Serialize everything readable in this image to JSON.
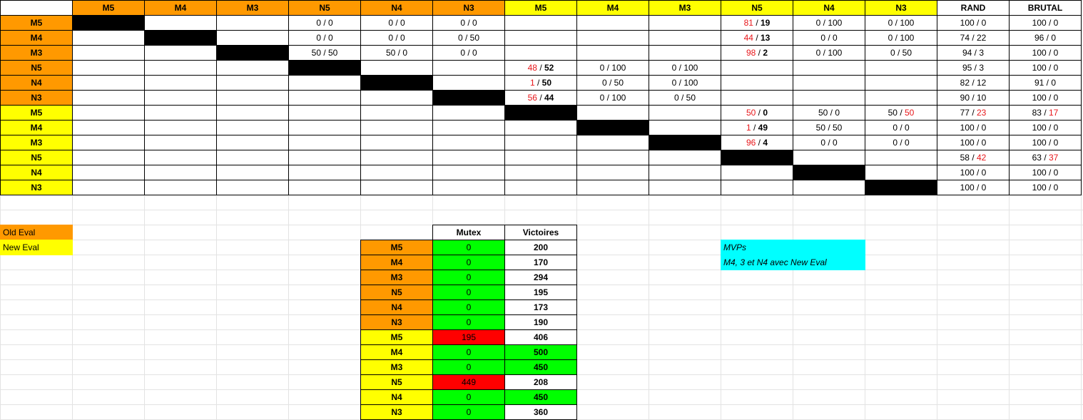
{
  "colors": {
    "orange": "#ff9900",
    "yellow": "#ffff00",
    "black": "#000000",
    "green": "#00ff00",
    "red_fill": "#ff0000",
    "cyan": "#00ffff",
    "red_text": "#e8171b"
  },
  "matrix": {
    "header": [
      {
        "label": "",
        "fill": "white"
      },
      {
        "label": "M5",
        "fill": "orange"
      },
      {
        "label": "M4",
        "fill": "orange"
      },
      {
        "label": "M3",
        "fill": "orange"
      },
      {
        "label": "N5",
        "fill": "orange"
      },
      {
        "label": "N4",
        "fill": "orange"
      },
      {
        "label": "N3",
        "fill": "orange"
      },
      {
        "label": "M5",
        "fill": "yellow"
      },
      {
        "label": "M4",
        "fill": "yellow"
      },
      {
        "label": "M3",
        "fill": "yellow"
      },
      {
        "label": "N5",
        "fill": "yellow"
      },
      {
        "label": "N4",
        "fill": "yellow"
      },
      {
        "label": "N3",
        "fill": "yellow"
      },
      {
        "label": "RAND",
        "fill": "white"
      },
      {
        "label": "BRUTAL",
        "fill": "white"
      }
    ],
    "rows": [
      {
        "label": "M5",
        "fill": "orange",
        "cells": [
          {
            "v": "",
            "black": true
          },
          {
            "v": ""
          },
          {
            "v": ""
          },
          {
            "v": "0 / 0"
          },
          {
            "v": "0 / 0"
          },
          {
            "v": "0 / 0"
          },
          {
            "v": ""
          },
          {
            "v": ""
          },
          {
            "v": ""
          },
          {
            "a": "81",
            "b": "19",
            "ar": true
          },
          {
            "v": "0 / 100"
          },
          {
            "v": "0 / 100"
          },
          {
            "v": "100 / 0"
          },
          {
            "v": "100 / 0"
          }
        ]
      },
      {
        "label": "M4",
        "fill": "orange",
        "cells": [
          {
            "v": ""
          },
          {
            "v": "",
            "black": true
          },
          {
            "v": ""
          },
          {
            "v": "0 / 0"
          },
          {
            "v": "0 / 0"
          },
          {
            "v": "0 / 50"
          },
          {
            "v": ""
          },
          {
            "v": ""
          },
          {
            "v": ""
          },
          {
            "a": "44",
            "b": "13",
            "ar": true
          },
          {
            "v": "0 / 0"
          },
          {
            "v": "0 / 100"
          },
          {
            "v": "74 / 22"
          },
          {
            "v": "96 / 0"
          }
        ]
      },
      {
        "label": "M3",
        "fill": "orange",
        "cells": [
          {
            "v": ""
          },
          {
            "v": ""
          },
          {
            "v": "",
            "black": true
          },
          {
            "v": "50 / 50"
          },
          {
            "v": "50 / 0"
          },
          {
            "v": "0 / 0"
          },
          {
            "v": ""
          },
          {
            "v": ""
          },
          {
            "v": ""
          },
          {
            "a": "98",
            "b": "2",
            "ar": true
          },
          {
            "v": "0 / 100"
          },
          {
            "v": "0 / 50"
          },
          {
            "v": "94 / 3"
          },
          {
            "v": "100 / 0"
          }
        ]
      },
      {
        "label": "N5",
        "fill": "orange",
        "cells": [
          {
            "v": ""
          },
          {
            "v": ""
          },
          {
            "v": ""
          },
          {
            "v": "",
            "black": true
          },
          {
            "v": ""
          },
          {
            "v": ""
          },
          {
            "a": "48",
            "b": "52",
            "ar": true
          },
          {
            "v": "0 / 100"
          },
          {
            "v": "0 / 100"
          },
          {
            "v": ""
          },
          {
            "v": ""
          },
          {
            "v": ""
          },
          {
            "v": "95 / 3"
          },
          {
            "v": "100 / 0"
          }
        ]
      },
      {
        "label": "N4",
        "fill": "orange",
        "cells": [
          {
            "v": ""
          },
          {
            "v": ""
          },
          {
            "v": ""
          },
          {
            "v": ""
          },
          {
            "v": "",
            "black": true
          },
          {
            "v": ""
          },
          {
            "a": "1",
            "b": "50",
            "ar": true
          },
          {
            "v": "0 / 50"
          },
          {
            "v": "0 / 100"
          },
          {
            "v": ""
          },
          {
            "v": ""
          },
          {
            "v": ""
          },
          {
            "v": "82 / 12"
          },
          {
            "v": "91 / 0"
          }
        ]
      },
      {
        "label": "N3",
        "fill": "orange",
        "cells": [
          {
            "v": ""
          },
          {
            "v": ""
          },
          {
            "v": ""
          },
          {
            "v": ""
          },
          {
            "v": ""
          },
          {
            "v": "",
            "black": true
          },
          {
            "a": "56",
            "b": "44",
            "ar": true
          },
          {
            "v": "0 / 100"
          },
          {
            "v": "0 / 50"
          },
          {
            "v": ""
          },
          {
            "v": ""
          },
          {
            "v": ""
          },
          {
            "v": "90 / 10"
          },
          {
            "v": "100 / 0"
          }
        ]
      },
      {
        "label": "M5",
        "fill": "yellow",
        "cells": [
          {
            "v": ""
          },
          {
            "v": ""
          },
          {
            "v": ""
          },
          {
            "v": ""
          },
          {
            "v": ""
          },
          {
            "v": ""
          },
          {
            "v": "",
            "black": true
          },
          {
            "v": ""
          },
          {
            "v": ""
          },
          {
            "a": "50",
            "b": "0",
            "ar": true
          },
          {
            "v": "50 / 0"
          },
          {
            "a": "50",
            "b": "50",
            "br": true
          },
          {
            "a": "77",
            "b": "23",
            "br": true
          },
          {
            "a": "83",
            "b": "17",
            "br": true
          }
        ]
      },
      {
        "label": "M4",
        "fill": "yellow",
        "cells": [
          {
            "v": ""
          },
          {
            "v": ""
          },
          {
            "v": ""
          },
          {
            "v": ""
          },
          {
            "v": ""
          },
          {
            "v": ""
          },
          {
            "v": ""
          },
          {
            "v": "",
            "black": true
          },
          {
            "v": ""
          },
          {
            "a": "1",
            "b": "49",
            "ar": true
          },
          {
            "v": "50 / 50"
          },
          {
            "v": "0 / 0"
          },
          {
            "v": "100 / 0"
          },
          {
            "v": "100 / 0"
          }
        ]
      },
      {
        "label": "M3",
        "fill": "yellow",
        "cells": [
          {
            "v": ""
          },
          {
            "v": ""
          },
          {
            "v": ""
          },
          {
            "v": ""
          },
          {
            "v": ""
          },
          {
            "v": ""
          },
          {
            "v": ""
          },
          {
            "v": ""
          },
          {
            "v": "",
            "black": true
          },
          {
            "a": "96",
            "b": "4",
            "ar": true
          },
          {
            "v": "0 / 0"
          },
          {
            "v": "0 / 0"
          },
          {
            "v": "100 / 0"
          },
          {
            "v": "100 / 0"
          }
        ]
      },
      {
        "label": "N5",
        "fill": "yellow",
        "cells": [
          {
            "v": ""
          },
          {
            "v": ""
          },
          {
            "v": ""
          },
          {
            "v": ""
          },
          {
            "v": ""
          },
          {
            "v": ""
          },
          {
            "v": ""
          },
          {
            "v": ""
          },
          {
            "v": ""
          },
          {
            "v": "",
            "black": true
          },
          {
            "v": ""
          },
          {
            "v": ""
          },
          {
            "a": "58",
            "b": "42",
            "br": true
          },
          {
            "a": "63",
            "b": "37",
            "br": true
          }
        ]
      },
      {
        "label": "N4",
        "fill": "yellow",
        "cells": [
          {
            "v": ""
          },
          {
            "v": ""
          },
          {
            "v": ""
          },
          {
            "v": ""
          },
          {
            "v": ""
          },
          {
            "v": ""
          },
          {
            "v": ""
          },
          {
            "v": ""
          },
          {
            "v": ""
          },
          {
            "v": ""
          },
          {
            "v": "",
            "black": true
          },
          {
            "v": ""
          },
          {
            "v": "100 / 0"
          },
          {
            "v": "100 / 0"
          }
        ]
      },
      {
        "label": "N3",
        "fill": "yellow",
        "cells": [
          {
            "v": ""
          },
          {
            "v": ""
          },
          {
            "v": ""
          },
          {
            "v": ""
          },
          {
            "v": ""
          },
          {
            "v": ""
          },
          {
            "v": ""
          },
          {
            "v": ""
          },
          {
            "v": ""
          },
          {
            "v": ""
          },
          {
            "v": ""
          },
          {
            "v": "",
            "black": true
          },
          {
            "v": "100 / 0"
          },
          {
            "v": "100 / 0"
          }
        ]
      }
    ]
  },
  "legend": [
    {
      "label": "Old Eval",
      "fill": "orange"
    },
    {
      "label": "New Eval",
      "fill": "yellow"
    }
  ],
  "summary": {
    "headers": [
      "Mutex",
      "Victoires"
    ],
    "rows": [
      {
        "label": "M5",
        "fill": "orange",
        "mutex": "0",
        "mutex_fill": "green",
        "victoires": "200",
        "vict_fill": "white"
      },
      {
        "label": "M4",
        "fill": "orange",
        "mutex": "0",
        "mutex_fill": "green",
        "victoires": "170",
        "vict_fill": "white"
      },
      {
        "label": "M3",
        "fill": "orange",
        "mutex": "0",
        "mutex_fill": "green",
        "victoires": "294",
        "vict_fill": "white"
      },
      {
        "label": "N5",
        "fill": "orange",
        "mutex": "0",
        "mutex_fill": "green",
        "victoires": "195",
        "vict_fill": "white"
      },
      {
        "label": "N4",
        "fill": "orange",
        "mutex": "0",
        "mutex_fill": "green",
        "victoires": "173",
        "vict_fill": "white"
      },
      {
        "label": "N3",
        "fill": "orange",
        "mutex": "0",
        "mutex_fill": "green",
        "victoires": "190",
        "vict_fill": "white"
      },
      {
        "label": "M5",
        "fill": "yellow",
        "mutex": "195",
        "mutex_fill": "red_fill",
        "victoires": "406",
        "vict_fill": "white"
      },
      {
        "label": "M4",
        "fill": "yellow",
        "mutex": "0",
        "mutex_fill": "green",
        "victoires": "500",
        "vict_fill": "green"
      },
      {
        "label": "M3",
        "fill": "yellow",
        "mutex": "0",
        "mutex_fill": "green",
        "victoires": "450",
        "vict_fill": "green"
      },
      {
        "label": "N5",
        "fill": "yellow",
        "mutex": "449",
        "mutex_fill": "red_fill",
        "victoires": "208",
        "vict_fill": "white"
      },
      {
        "label": "N4",
        "fill": "yellow",
        "mutex": "0",
        "mutex_fill": "green",
        "victoires": "450",
        "vict_fill": "green"
      },
      {
        "label": "N3",
        "fill": "yellow",
        "mutex": "0",
        "mutex_fill": "green",
        "victoires": "360",
        "vict_fill": "white"
      }
    ]
  },
  "mvp": {
    "title": "MVPs",
    "text": "M4, 3 et N4 avec New Eval",
    "fill": "cyan"
  }
}
